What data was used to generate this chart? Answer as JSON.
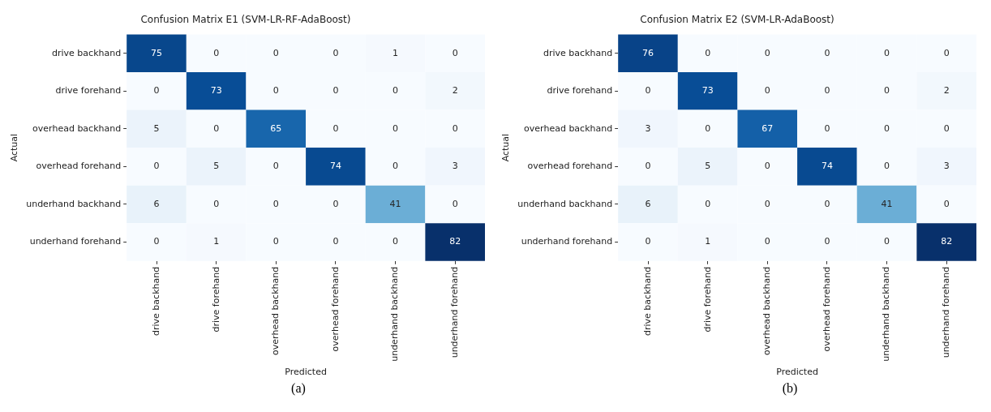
{
  "chart_data": [
    {
      "type": "heatmap",
      "title": "Confusion Matrix E1 (SVM-LR-RF-AdaBoost)",
      "xlabel": "Predicted",
      "ylabel": "Actual",
      "annotations": [
        "(a)"
      ],
      "categories": [
        "drive backhand",
        "drive forehand",
        "overhead backhand",
        "overhead forehand",
        "underhand backhand",
        "underhand forehand"
      ],
      "y_categories": [
        "drive backhand",
        "drive forehand",
        "overhead backhand",
        "overhead forehand",
        "underhand backhand",
        "underhand forehand"
      ],
      "cells": [
        [
          75,
          0,
          0,
          0,
          1,
          0
        ],
        [
          0,
          73,
          0,
          0,
          0,
          2
        ],
        [
          5,
          0,
          65,
          0,
          0,
          0
        ],
        [
          0,
          5,
          0,
          74,
          0,
          3
        ],
        [
          6,
          0,
          0,
          0,
          41,
          0
        ],
        [
          0,
          1,
          0,
          0,
          0,
          82
        ]
      ],
      "data_labels": true
    },
    {
      "type": "heatmap",
      "title": "Confusion Matrix E2 (SVM-LR-AdaBoost)",
      "xlabel": "Predicted",
      "ylabel": "Actual",
      "annotations": [
        "(b)"
      ],
      "categories": [
        "drive backhand",
        "drive forehand",
        "overhead backhand",
        "overhead forehand",
        "underhand backhand",
        "underhand forehand"
      ],
      "y_categories": [
        "drive backhand",
        "drive forehand",
        "overhead backhand",
        "overhead forehand",
        "underhand backhand",
        "underhand forehand"
      ],
      "cells": [
        [
          76,
          0,
          0,
          0,
          0,
          0
        ],
        [
          0,
          73,
          0,
          0,
          0,
          2
        ],
        [
          3,
          0,
          67,
          0,
          0,
          0
        ],
        [
          0,
          5,
          0,
          74,
          0,
          3
        ],
        [
          6,
          0,
          0,
          0,
          41,
          0
        ],
        [
          0,
          1,
          0,
          0,
          0,
          82
        ]
      ],
      "data_labels": true
    }
  ]
}
